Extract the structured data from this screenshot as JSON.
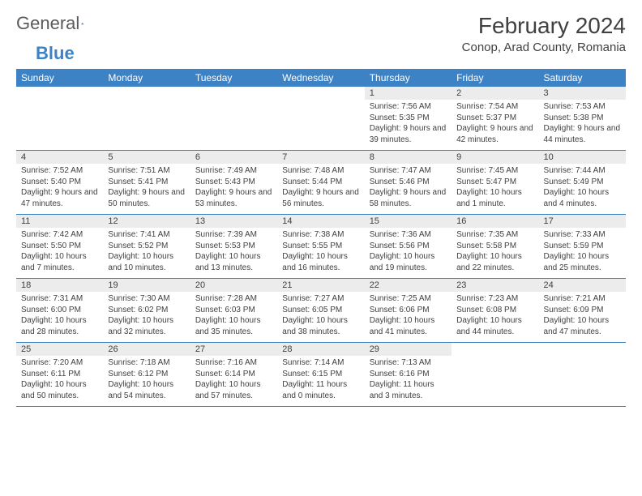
{
  "brand": {
    "part1": "General",
    "part2": "Blue"
  },
  "title": "February 2024",
  "location": "Conop, Arad County, Romania",
  "theme": {
    "accent": "#3d82c4",
    "day_header_bg": "#ececec",
    "text": "#404040"
  },
  "weekdays": [
    "Sunday",
    "Monday",
    "Tuesday",
    "Wednesday",
    "Thursday",
    "Friday",
    "Saturday"
  ],
  "weeks": [
    [
      {
        "n": "",
        "sr": "",
        "ss": "",
        "dl": ""
      },
      {
        "n": "",
        "sr": "",
        "ss": "",
        "dl": ""
      },
      {
        "n": "",
        "sr": "",
        "ss": "",
        "dl": ""
      },
      {
        "n": "",
        "sr": "",
        "ss": "",
        "dl": ""
      },
      {
        "n": "1",
        "sr": "Sunrise: 7:56 AM",
        "ss": "Sunset: 5:35 PM",
        "dl": "Daylight: 9 hours and 39 minutes."
      },
      {
        "n": "2",
        "sr": "Sunrise: 7:54 AM",
        "ss": "Sunset: 5:37 PM",
        "dl": "Daylight: 9 hours and 42 minutes."
      },
      {
        "n": "3",
        "sr": "Sunrise: 7:53 AM",
        "ss": "Sunset: 5:38 PM",
        "dl": "Daylight: 9 hours and 44 minutes."
      }
    ],
    [
      {
        "n": "4",
        "sr": "Sunrise: 7:52 AM",
        "ss": "Sunset: 5:40 PM",
        "dl": "Daylight: 9 hours and 47 minutes."
      },
      {
        "n": "5",
        "sr": "Sunrise: 7:51 AM",
        "ss": "Sunset: 5:41 PM",
        "dl": "Daylight: 9 hours and 50 minutes."
      },
      {
        "n": "6",
        "sr": "Sunrise: 7:49 AM",
        "ss": "Sunset: 5:43 PM",
        "dl": "Daylight: 9 hours and 53 minutes."
      },
      {
        "n": "7",
        "sr": "Sunrise: 7:48 AM",
        "ss": "Sunset: 5:44 PM",
        "dl": "Daylight: 9 hours and 56 minutes."
      },
      {
        "n": "8",
        "sr": "Sunrise: 7:47 AM",
        "ss": "Sunset: 5:46 PM",
        "dl": "Daylight: 9 hours and 58 minutes."
      },
      {
        "n": "9",
        "sr": "Sunrise: 7:45 AM",
        "ss": "Sunset: 5:47 PM",
        "dl": "Daylight: 10 hours and 1 minute."
      },
      {
        "n": "10",
        "sr": "Sunrise: 7:44 AM",
        "ss": "Sunset: 5:49 PM",
        "dl": "Daylight: 10 hours and 4 minutes."
      }
    ],
    [
      {
        "n": "11",
        "sr": "Sunrise: 7:42 AM",
        "ss": "Sunset: 5:50 PM",
        "dl": "Daylight: 10 hours and 7 minutes."
      },
      {
        "n": "12",
        "sr": "Sunrise: 7:41 AM",
        "ss": "Sunset: 5:52 PM",
        "dl": "Daylight: 10 hours and 10 minutes."
      },
      {
        "n": "13",
        "sr": "Sunrise: 7:39 AM",
        "ss": "Sunset: 5:53 PM",
        "dl": "Daylight: 10 hours and 13 minutes."
      },
      {
        "n": "14",
        "sr": "Sunrise: 7:38 AM",
        "ss": "Sunset: 5:55 PM",
        "dl": "Daylight: 10 hours and 16 minutes."
      },
      {
        "n": "15",
        "sr": "Sunrise: 7:36 AM",
        "ss": "Sunset: 5:56 PM",
        "dl": "Daylight: 10 hours and 19 minutes."
      },
      {
        "n": "16",
        "sr": "Sunrise: 7:35 AM",
        "ss": "Sunset: 5:58 PM",
        "dl": "Daylight: 10 hours and 22 minutes."
      },
      {
        "n": "17",
        "sr": "Sunrise: 7:33 AM",
        "ss": "Sunset: 5:59 PM",
        "dl": "Daylight: 10 hours and 25 minutes."
      }
    ],
    [
      {
        "n": "18",
        "sr": "Sunrise: 7:31 AM",
        "ss": "Sunset: 6:00 PM",
        "dl": "Daylight: 10 hours and 28 minutes."
      },
      {
        "n": "19",
        "sr": "Sunrise: 7:30 AM",
        "ss": "Sunset: 6:02 PM",
        "dl": "Daylight: 10 hours and 32 minutes."
      },
      {
        "n": "20",
        "sr": "Sunrise: 7:28 AM",
        "ss": "Sunset: 6:03 PM",
        "dl": "Daylight: 10 hours and 35 minutes."
      },
      {
        "n": "21",
        "sr": "Sunrise: 7:27 AM",
        "ss": "Sunset: 6:05 PM",
        "dl": "Daylight: 10 hours and 38 minutes."
      },
      {
        "n": "22",
        "sr": "Sunrise: 7:25 AM",
        "ss": "Sunset: 6:06 PM",
        "dl": "Daylight: 10 hours and 41 minutes."
      },
      {
        "n": "23",
        "sr": "Sunrise: 7:23 AM",
        "ss": "Sunset: 6:08 PM",
        "dl": "Daylight: 10 hours and 44 minutes."
      },
      {
        "n": "24",
        "sr": "Sunrise: 7:21 AM",
        "ss": "Sunset: 6:09 PM",
        "dl": "Daylight: 10 hours and 47 minutes."
      }
    ],
    [
      {
        "n": "25",
        "sr": "Sunrise: 7:20 AM",
        "ss": "Sunset: 6:11 PM",
        "dl": "Daylight: 10 hours and 50 minutes."
      },
      {
        "n": "26",
        "sr": "Sunrise: 7:18 AM",
        "ss": "Sunset: 6:12 PM",
        "dl": "Daylight: 10 hours and 54 minutes."
      },
      {
        "n": "27",
        "sr": "Sunrise: 7:16 AM",
        "ss": "Sunset: 6:14 PM",
        "dl": "Daylight: 10 hours and 57 minutes."
      },
      {
        "n": "28",
        "sr": "Sunrise: 7:14 AM",
        "ss": "Sunset: 6:15 PM",
        "dl": "Daylight: 11 hours and 0 minutes."
      },
      {
        "n": "29",
        "sr": "Sunrise: 7:13 AM",
        "ss": "Sunset: 6:16 PM",
        "dl": "Daylight: 11 hours and 3 minutes."
      },
      {
        "n": "",
        "sr": "",
        "ss": "",
        "dl": ""
      },
      {
        "n": "",
        "sr": "",
        "ss": "",
        "dl": ""
      }
    ]
  ]
}
